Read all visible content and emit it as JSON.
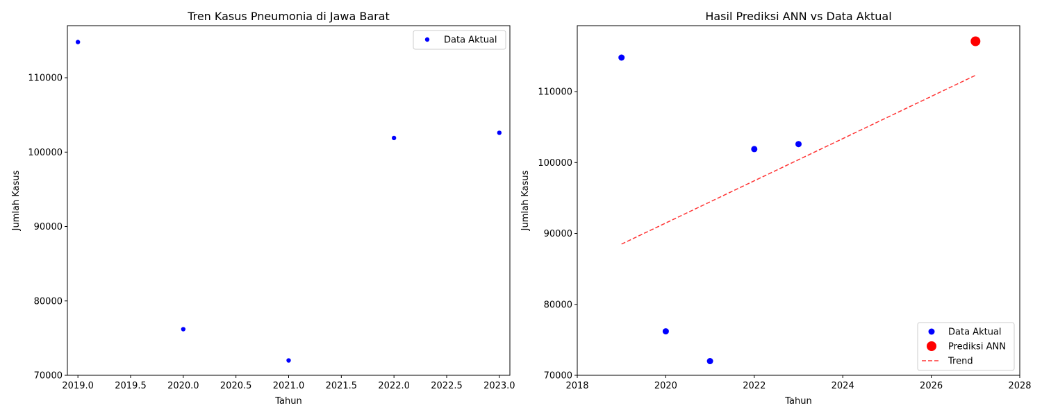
{
  "chart_data": [
    {
      "type": "scatter",
      "title": "Tren Kasus Pneumonia di Jawa Barat",
      "xlabel": "Tahun",
      "ylabel": "Jumlah Kasus",
      "xlim": [
        2018.9,
        2023.1
      ],
      "ylim": [
        70000,
        117000
      ],
      "xticks": [
        2019.0,
        2019.5,
        2020.0,
        2020.5,
        2021.0,
        2021.5,
        2022.0,
        2022.5,
        2023.0
      ],
      "xtick_labels": [
        "2019.0",
        "2019.5",
        "2020.0",
        "2020.5",
        "2021.0",
        "2021.5",
        "2022.0",
        "2022.5",
        "2023.0"
      ],
      "yticks": [
        70000,
        80000,
        90000,
        100000,
        110000
      ],
      "ytick_labels": [
        "70000",
        "80000",
        "90000",
        "100000",
        "110000"
      ],
      "grid": false,
      "legend_position": "upper right",
      "series": [
        {
          "name": "Data Aktual",
          "kind": "scatter",
          "color": "#0000ff",
          "marker_size": "small",
          "x": [
            2019,
            2020,
            2021,
            2022,
            2023
          ],
          "y": [
            114800,
            76200,
            72000,
            101900,
            102600
          ]
        }
      ]
    },
    {
      "type": "scatter",
      "title": "Hasil Prediksi ANN vs Data Aktual",
      "xlabel": "Tahun",
      "ylabel": "Jumlah Kasus",
      "xlim": [
        2018,
        2028
      ],
      "ylim": [
        70000,
        119300
      ],
      "xticks": [
        2018,
        2020,
        2022,
        2024,
        2026,
        2028
      ],
      "xtick_labels": [
        "2018",
        "2020",
        "2022",
        "2024",
        "2026",
        "2028"
      ],
      "yticks": [
        70000,
        80000,
        90000,
        100000,
        110000
      ],
      "ytick_labels": [
        "70000",
        "80000",
        "90000",
        "100000",
        "110000"
      ],
      "grid": false,
      "legend_position": "lower right",
      "series": [
        {
          "name": "Data Aktual",
          "kind": "scatter",
          "color": "#0000ff",
          "marker_size": "medium",
          "x": [
            2019,
            2020,
            2021,
            2022,
            2023
          ],
          "y": [
            114800,
            76200,
            72000,
            101900,
            102600
          ]
        },
        {
          "name": "Prediksi ANN",
          "kind": "scatter",
          "color": "#ff0000",
          "marker_size": "large",
          "x": [
            2027
          ],
          "y": [
            117100
          ]
        },
        {
          "name": "Trend",
          "kind": "line",
          "style": "dashed",
          "color": "#ff0000",
          "x": [
            2019,
            2027
          ],
          "y": [
            88500,
            112300
          ]
        }
      ]
    }
  ]
}
